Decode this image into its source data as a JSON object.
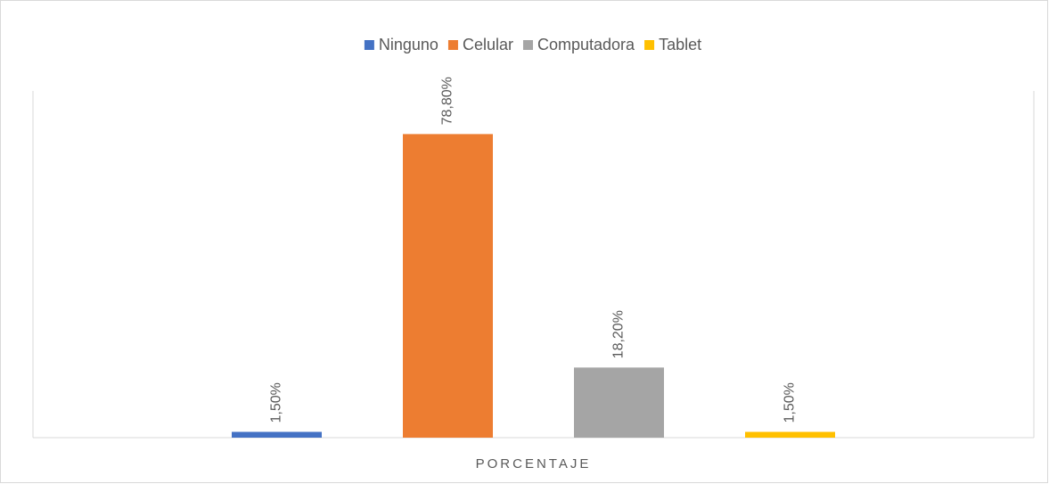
{
  "chart_data": {
    "type": "bar",
    "categories": [
      "PORCENTAJE"
    ],
    "series": [
      {
        "name": "Ninguno",
        "color": "#4472c4",
        "values": [
          1.5
        ],
        "value_labels": [
          "1,50%"
        ]
      },
      {
        "name": "Celular",
        "color": "#ed7d31",
        "values": [
          78.8
        ],
        "value_labels": [
          "78,80%"
        ]
      },
      {
        "name": "Computadora",
        "color": "#a5a5a5",
        "values": [
          18.2
        ],
        "value_labels": [
          "18,20%"
        ]
      },
      {
        "name": "Tablet",
        "color": "#ffc000",
        "values": [
          1.5
        ],
        "value_labels": [
          "1,50%"
        ]
      }
    ],
    "ylim": [
      0,
      90
    ],
    "legend": "top"
  }
}
